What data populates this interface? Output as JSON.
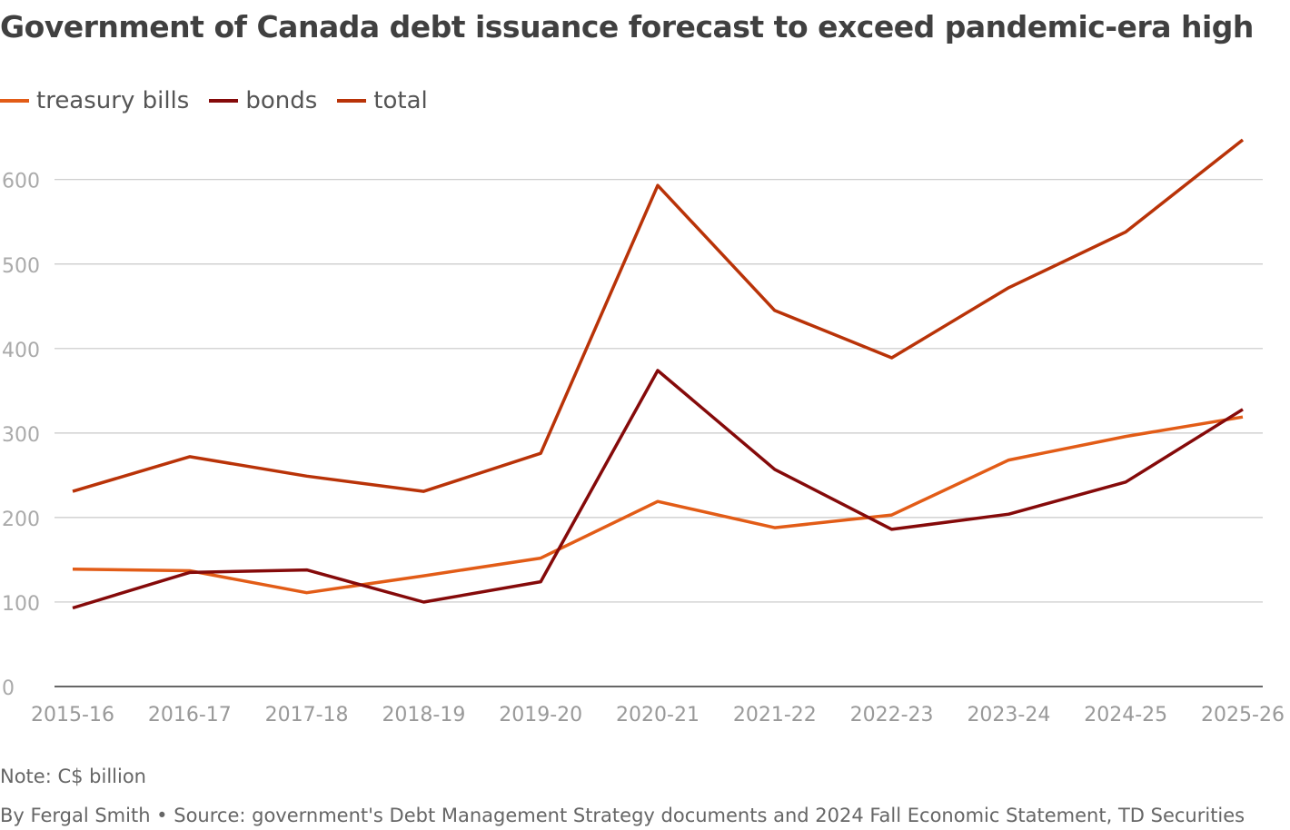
{
  "chart_data": {
    "type": "line",
    "title": "Government of Canada debt issuance forecast to exceed pandemic-era high",
    "xlabel": "",
    "ylabel": "",
    "categories": [
      "2015-16",
      "2016-17",
      "2017-18",
      "2018-19",
      "2019-20",
      "2020-21",
      "2021-22",
      "2022-23",
      "2023-24",
      "2024-25",
      "2025-26"
    ],
    "ylim": [
      0,
      650
    ],
    "yticks": [
      0,
      100,
      200,
      300,
      400,
      500,
      600
    ],
    "grid": true,
    "legend_position": "top-left",
    "series": [
      {
        "name": "treasury bills",
        "color": "#e25c17",
        "values": [
          139,
          137,
          111,
          131,
          152,
          219,
          188,
          203,
          268,
          296,
          319
        ]
      },
      {
        "name": "bonds",
        "color": "#850a0a",
        "values": [
          93,
          135,
          138,
          100,
          124,
          374,
          257,
          186,
          204,
          242,
          328
        ]
      },
      {
        "name": "total",
        "color": "#b93308",
        "values": [
          231,
          272,
          249,
          231,
          276,
          593,
          445,
          389,
          472,
          538,
          647
        ]
      }
    ]
  },
  "note": "Note: C$ billion",
  "source": "By Fergal Smith • Source: government's Debt Management Strategy documents and 2024 Fall Economic Statement, TD Securities"
}
